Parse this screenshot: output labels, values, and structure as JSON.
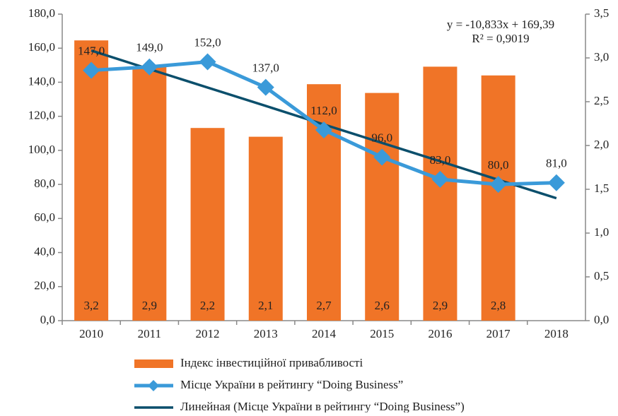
{
  "chart_data": {
    "type": "combo",
    "categories": [
      "2010",
      "2011",
      "2012",
      "2013",
      "2014",
      "2015",
      "2016",
      "2017",
      "2018"
    ],
    "series": [
      {
        "name": "Індекс інвестиційної привабливості",
        "type": "bar",
        "axis": "y2",
        "color": "#f07427",
        "values": [
          3.2,
          2.9,
          2.2,
          2.1,
          2.7,
          2.6,
          2.9,
          2.8,
          null
        ],
        "value_labels": [
          "3,2",
          "2,9",
          "2,2",
          "2,1",
          "2,7",
          "2,6",
          "2,9",
          "2,8",
          null
        ]
      },
      {
        "name": "Місце України в рейтингу “Doing Business”",
        "type": "line",
        "axis": "y",
        "color": "#3a9ad9",
        "values": [
          147,
          149,
          152,
          137,
          112,
          96,
          83,
          80,
          81
        ],
        "value_labels": [
          "147,0",
          "149,0",
          "152,0",
          "137,0",
          "112,0",
          "96,0",
          "83,0",
          "80,0",
          "81,0"
        ]
      },
      {
        "name": "Линейная (Місце України в рейтингу “Doing Business”)",
        "type": "trend",
        "axis": "y",
        "color": "#0b4f6c",
        "values": [
          158.6,
          147.7,
          136.9,
          126.1,
          115.2,
          104.4,
          93.6,
          82.7,
          71.9
        ]
      }
    ],
    "annotations": [
      "y = -10,833x + 169,39",
      "R² = 0,9019"
    ],
    "ylim": [
      0,
      180
    ],
    "yticks": [
      {
        "value": 0,
        "label": "0,0"
      },
      {
        "value": 20,
        "label": "20,0"
      },
      {
        "value": 40,
        "label": "40,0"
      },
      {
        "value": 60,
        "label": "60,0"
      },
      {
        "value": 80,
        "label": "80,0"
      },
      {
        "value": 100,
        "label": "100,0"
      },
      {
        "value": 120,
        "label": "120,0"
      },
      {
        "value": 140,
        "label": "140,0"
      },
      {
        "value": 160,
        "label": "160,0"
      },
      {
        "value": 180,
        "label": "180,0"
      }
    ],
    "y2lim": [
      0,
      3.5
    ],
    "y2ticks": [
      {
        "value": 0,
        "label": "0,0"
      },
      {
        "value": 0.5,
        "label": "0,5"
      },
      {
        "value": 1,
        "label": "1,0"
      },
      {
        "value": 1.5,
        "label": "1,5"
      },
      {
        "value": 2,
        "label": "2,0"
      },
      {
        "value": 2.5,
        "label": "2,5"
      },
      {
        "value": 3,
        "label": "3,0"
      },
      {
        "value": 3.5,
        "label": "3,5"
      }
    ],
    "grid": false
  }
}
